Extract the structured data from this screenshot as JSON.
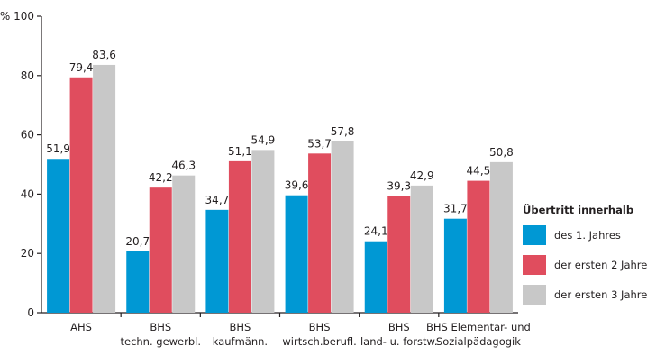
{
  "chart_data": {
    "type": "bar",
    "y_unit_label": "% 100",
    "ylim": [
      0,
      100
    ],
    "yticks": [
      "0",
      "20",
      "40",
      "60",
      "80"
    ],
    "grid": false,
    "legend_position": "right",
    "categories": [
      [
        "AHS"
      ],
      [
        "BHS",
        "techn. gewerbl."
      ],
      [
        "BHS",
        "kaufmänn."
      ],
      [
        "BHS",
        "wirtsch.berufl."
      ],
      [
        "BHS",
        "land- u. forstw."
      ],
      [
        "BHS Elementar- und",
        "Sozialpädagogik"
      ]
    ],
    "series": [
      {
        "name": "des 1. Jahres",
        "color": "#0098d4",
        "values": [
          51.9,
          20.7,
          34.7,
          39.6,
          24.1,
          31.7
        ],
        "labels": [
          "51,9",
          "20,7",
          "34,7",
          "39,6",
          "24,1",
          "31,7"
        ]
      },
      {
        "name": "der ersten 2 Jahre",
        "color": "#e04d5e",
        "values": [
          79.4,
          42.2,
          51.1,
          53.7,
          39.3,
          44.5
        ],
        "labels": [
          "79,4",
          "42,2",
          "51,1",
          "53,7",
          "39,3",
          "44,5"
        ]
      },
      {
        "name": "der ersten 3 Jahre",
        "color": "#c8c8c8",
        "values": [
          83.6,
          46.3,
          54.9,
          57.8,
          42.9,
          50.8
        ],
        "labels": [
          "83,6",
          "46,3",
          "54,9",
          "57,8",
          "42,9",
          "50,8"
        ]
      }
    ],
    "legend_title": "Übertritt innerhalb"
  }
}
